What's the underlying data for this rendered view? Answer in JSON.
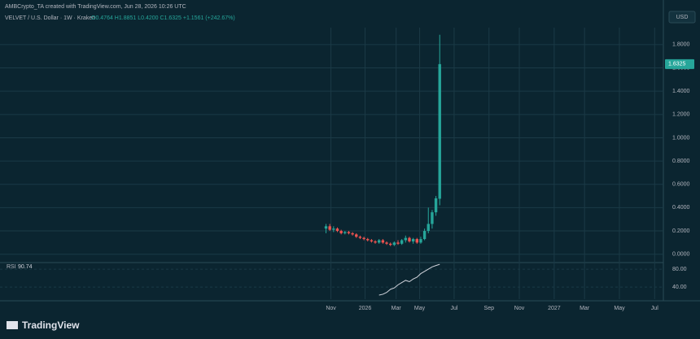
{
  "header": "AMBCrypto_TA created with TradingView.com, Jun 28, 2026 10:26 UTC",
  "currency": "USD",
  "brand": "TradingView",
  "chart_data": [
    {
      "type": "candlestick",
      "title": "VELVET / U.S. Dollar · 1W · Kraken",
      "ohlc": "O0.4764 H1.8851 L0.4200 C1.6325 +1.1561 (+242.67%)",
      "up_color": "#26a69a",
      "down_color": "#ef5350",
      "open": [
        0.22,
        0.24,
        0.21,
        0.22,
        0.2,
        0.18,
        0.19,
        0.18,
        0.17,
        0.15,
        0.14,
        0.13,
        0.12,
        0.11,
        0.1,
        0.12,
        0.1,
        0.09,
        0.08,
        0.1,
        0.09,
        0.12,
        0.14,
        0.11,
        0.13,
        0.1,
        0.13,
        0.2,
        0.26,
        0.36,
        0.4764
      ],
      "high": [
        0.26,
        0.26,
        0.24,
        0.23,
        0.21,
        0.2,
        0.2,
        0.19,
        0.18,
        0.16,
        0.15,
        0.14,
        0.13,
        0.12,
        0.13,
        0.13,
        0.11,
        0.1,
        0.11,
        0.12,
        0.13,
        0.16,
        0.15,
        0.14,
        0.14,
        0.15,
        0.22,
        0.4,
        0.38,
        0.5,
        1.8851
      ],
      "low": [
        0.18,
        0.2,
        0.19,
        0.19,
        0.17,
        0.17,
        0.17,
        0.16,
        0.14,
        0.13,
        0.12,
        0.11,
        0.1,
        0.09,
        0.09,
        0.09,
        0.08,
        0.07,
        0.07,
        0.08,
        0.08,
        0.1,
        0.1,
        0.09,
        0.09,
        0.09,
        0.12,
        0.18,
        0.22,
        0.33,
        0.42
      ],
      "close": [
        0.24,
        0.21,
        0.22,
        0.2,
        0.18,
        0.19,
        0.18,
        0.17,
        0.15,
        0.14,
        0.13,
        0.12,
        0.11,
        0.1,
        0.12,
        0.1,
        0.09,
        0.08,
        0.1,
        0.09,
        0.12,
        0.14,
        0.11,
        0.13,
        0.1,
        0.13,
        0.2,
        0.26,
        0.36,
        0.48,
        1.6325
      ],
      "ylim": [
        -0.065,
        1.89
      ],
      "yticks": [
        {
          "value": 0,
          "label": "0.0000"
        },
        {
          "value": 0.2,
          "label": "0.2000"
        },
        {
          "value": 0.4,
          "label": "0.4000"
        },
        {
          "value": 0.6,
          "label": "0.6000"
        },
        {
          "value": 0.8,
          "label": "0.8000"
        },
        {
          "value": 1,
          "label": "1.0000"
        },
        {
          "value": 1.2,
          "label": "1.2000"
        },
        {
          "value": 1.4,
          "label": "1.4000"
        },
        {
          "value": 1.6,
          "label": "1.6000"
        },
        {
          "value": 1.8,
          "label": "1.8000"
        }
      ],
      "xlim": [
        -86,
        89
      ],
      "xticks": [
        {
          "value": 1.3,
          "label": "Nov"
        },
        {
          "value": 10.3,
          "label": "2026"
        },
        {
          "value": 18.5,
          "label": "Mar"
        },
        {
          "value": 24.7,
          "label": "May"
        },
        {
          "value": 33.8,
          "label": "Jul"
        },
        {
          "value": 43,
          "label": "Sep"
        },
        {
          "value": 51,
          "label": "Nov"
        },
        {
          "value": 60.2,
          "label": "2027"
        },
        {
          "value": 68.2,
          "label": "Mar"
        },
        {
          "value": 77.4,
          "label": "May"
        },
        {
          "value": 86.7,
          "label": "Jul"
        }
      ],
      "grid": true
    },
    {
      "type": "line",
      "title": "RSI",
      "color": "#d1d4dc",
      "values": [
        null,
        null,
        null,
        null,
        null,
        null,
        null,
        null,
        null,
        null,
        null,
        null,
        null,
        null,
        22,
        24,
        28,
        35,
        38,
        45,
        50,
        55,
        52,
        58,
        62,
        70,
        75,
        80,
        85,
        88,
        90.74
      ],
      "ylim": [
        13,
        91
      ],
      "yticks": [
        {
          "value": 40,
          "label": "40.00"
        },
        {
          "value": 80,
          "label": "80.00"
        }
      ]
    }
  ]
}
